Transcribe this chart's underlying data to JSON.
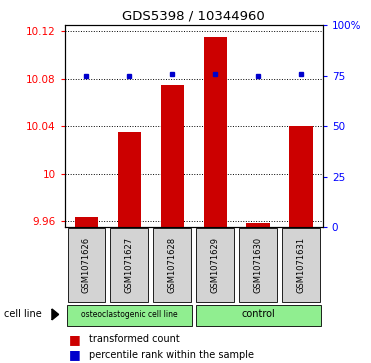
{
  "title": "GDS5398 / 10344960",
  "samples": [
    "GSM1071626",
    "GSM1071627",
    "GSM1071628",
    "GSM1071629",
    "GSM1071630",
    "GSM1071631"
  ],
  "transformed_count": [
    9.963,
    10.035,
    10.075,
    10.115,
    9.958,
    10.04
  ],
  "percentile_rank": [
    75,
    75,
    76,
    76,
    75,
    76
  ],
  "ylim_left": [
    9.955,
    10.125
  ],
  "ylim_right": [
    0,
    100
  ],
  "yticks_left": [
    9.96,
    10.0,
    10.04,
    10.08,
    10.12
  ],
  "yticks_right": [
    0,
    25,
    50,
    75,
    100
  ],
  "ytick_labels_left": [
    "9.96",
    "10",
    "10.04",
    "10.08",
    "10.12"
  ],
  "ytick_labels_right": [
    "0",
    "25",
    "50",
    "75",
    "100%"
  ],
  "group1_label": "osteoclastogenic cell line",
  "group2_label": "control",
  "group1_indices": [
    0,
    1,
    2
  ],
  "group2_indices": [
    3,
    4,
    5
  ],
  "cell_line_label": "cell line",
  "legend_bar_label": "transformed count",
  "legend_dot_label": "percentile rank within the sample",
  "bar_color": "#cc0000",
  "dot_color": "#0000cc",
  "group_color": "#90ee90",
  "bar_baseline": 9.955,
  "bar_width": 0.55,
  "bg_color": "#d3d3d3"
}
